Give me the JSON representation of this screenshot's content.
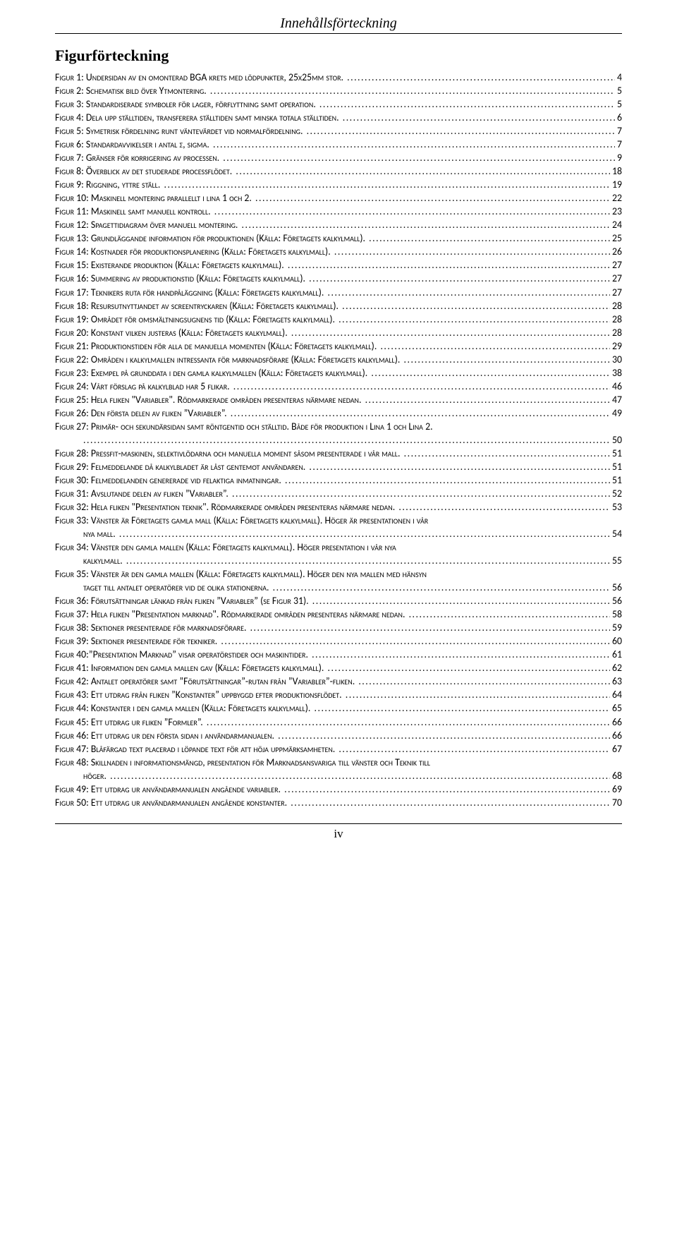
{
  "running_head": "Innehållsförteckning",
  "section_title": "Figurförteckning",
  "page_number": "iv",
  "entries": [
    {
      "label": "Figur 1: Undersidan av en omonterad BGA krets med lödpunkter, 25x25mm stor.",
      "page": "4"
    },
    {
      "label": "Figur 2: Schematisk bild över Ytmontering.",
      "page": "5"
    },
    {
      "label": "Figur 3: Standardiserade symboler för lager, förflyttning samt operation.",
      "page": "5"
    },
    {
      "label": "Figur 4: Dela upp ställtiden, transferera ställtiden samt minska totala ställtiden.",
      "page": "6"
    },
    {
      "label": "Figur 5: Symetrisk fördelning runt väntevärdet vid normalfördelning.",
      "page": "7"
    },
    {
      "label": "Figur 6: Standardavvikelser i antal σ, sigma.",
      "page": "7"
    },
    {
      "label": "Figur 7: Gränser för korrigering av processen.",
      "page": "9"
    },
    {
      "label": "Figur 8: Överblick av det studerade processflödet.",
      "page": "18"
    },
    {
      "label": "Figur 9: Riggning, yttre ställ.",
      "page": "19"
    },
    {
      "label": "Figur 10: Maskinell montering parallellt i lina 1 och 2.",
      "page": "22"
    },
    {
      "label": "Figur 11: Maskinell samt manuell kontroll.",
      "page": "23"
    },
    {
      "label": "Figur 12: Spagettidiagram över manuell montering.",
      "page": "24"
    },
    {
      "label": "Figur 13: Grundläggande information för produktionen (Källa: Företagets kalkylmall).",
      "page": "25"
    },
    {
      "label": "Figur 14: Kostnader för produktionsplanering (Källa: Företagets kalkylmall).",
      "page": "26"
    },
    {
      "label": "Figur 15: Existerande produktion (Källa: Företagets kalkylmall).",
      "page": "27"
    },
    {
      "label": "Figur 16: Summering av produktionstid (Källa: Företagets kalkylmall).",
      "page": "27"
    },
    {
      "label": "Figur 17: Teknikers ruta för handpåläggning (Källa: Företagets kalkylmall).",
      "page": "27"
    },
    {
      "label": "Figur 18: Resursutnyttjandet av screentryckaren (Källa: Företagets kalkylmall).",
      "page": "28"
    },
    {
      "label": "Figur 19: Området för omsmältningsugnens tid (Källa: Företagets kalkylmall).",
      "page": "28"
    },
    {
      "label": "Figur 20: Konstant vilken justeras (Källa: Företagets kalkylmall).",
      "page": "28"
    },
    {
      "label": "Figur 21: Produktionstiden för alla de manuella momenten (Källa: Företagets kalkylmall).",
      "page": "29"
    },
    {
      "label": "Figur 22: Områden i kalkylmallen intressanta för marknadsförare (Källa: Företagets kalkylmall).",
      "page": "30"
    },
    {
      "label": "Figur 23: Exempel på grunddata i den gamla kalkylmallen (Källa: Företagets kalkylmall).",
      "page": "38"
    },
    {
      "label": "Figur 24: Vårt förslag på kalkylblad har 5 flikar.",
      "page": "46"
    },
    {
      "label": "Figur 25: Hela fliken \"Variabler\". Rödmarkerade områden presenteras närmare nedan.",
      "page": "47"
    },
    {
      "label": "Figur 26: Den första delen av fliken ”Variabler”.",
      "page": "49"
    },
    {
      "label": "Figur 27: Primär- och sekundärsidan samt röntgentid och ställtid. Både för produktion i Lina 1 och Lina 2.",
      "page": "50",
      "wrap": true
    },
    {
      "label": "Figur 28: Pressfit-maskinen, selektivlödarna och manuella moment såsom presenterade i vår mall.",
      "page": "51"
    },
    {
      "label": "Figur 29: Felmeddelande då kalkylbladet är låst gentemot användaren.",
      "page": "51"
    },
    {
      "label": "Figur 30: Felmeddelanden genererade vid felaktiga inmatningar.",
      "page": "51"
    },
    {
      "label": "Figur 31: Avslutande delen av fliken ”Variabler”.",
      "page": "52"
    },
    {
      "label": "Figur 32: Hela fliken \"Presentation teknik\". Rödmarkerade områden presenteras närmare nedan.",
      "page": "53"
    },
    {
      "label": "Figur 33: Vänster är Företagets gamla mall (Källa: Företagets kalkylmall). Höger är presentationen i vår nya mall.",
      "page": "54",
      "continuation": "nya mall."
    },
    {
      "label": "Figur 34: Vänster den gamla mallen (Källa: Företagets kalkylmall). Höger presentation i vår nya kalkylmall.",
      "page": "55",
      "continuation": "kalkylmall."
    },
    {
      "label": "Figur 35: Vänster är den gamla mallen (Källa: Företagets kalkylmall). Höger den nya mallen med hänsyn taget till antalet operatörer vid de olika stationerna.",
      "page": "56",
      "continuation": "taget till antalet operatörer vid de olika stationerna."
    },
    {
      "label": "Figur 36: Förutsättningar länkad från fliken ”Variabler” (se Figur 31).",
      "page": "56"
    },
    {
      "label": "Figur 37: Hela fliken \"Presentation marknad\". Rödmarkerade områden presenteras närmare nedan.",
      "page": "58"
    },
    {
      "label": "Figur 38: Sektioner presenterade för marknadsförare.",
      "page": "59"
    },
    {
      "label": "Figur 39: Sektioner presenterade för tekniker.",
      "page": "60"
    },
    {
      "label": "Figur 40:”Presentation Marknad” visar operatörstider och maskintider.",
      "page": "61"
    },
    {
      "label": "Figur 41: Information den gamla mallen gav (Källa: Företagets kalkylmall).",
      "page": "62"
    },
    {
      "label": "Figur 42: Antalet operatörer samt ”Förutsättningar”-rutan från ”Variabler”-fliken.",
      "page": "63"
    },
    {
      "label": "Figur 43: Ett utdrag från fliken ”Konstanter” uppbyggd efter produktionsflödet.",
      "page": "64"
    },
    {
      "label": "Figur 44: Konstanter i den gamla mallen (Källa: Företagets kalkylmall).",
      "page": "65"
    },
    {
      "label": "Figur 45: Ett utdrag ur fliken ”Formler”.",
      "page": "66"
    },
    {
      "label": "Figur 46: Ett utdrag ur den första sidan i användarmanualen.",
      "page": "66"
    },
    {
      "label": "Figur 47: Blåfärgad text placerad i löpande text för att höja uppmärksamheten.",
      "page": "67"
    },
    {
      "label": "Figur 48: Skillnaden i informationsmängd, presentation för Marknadsansvariga till vänster och Teknik till höger.",
      "page": "68",
      "continuation": "höger."
    },
    {
      "label": "Figur 49: Ett utdrag ur användarmanualen angående variabler.",
      "page": "69"
    },
    {
      "label": "Figur 50: Ett utdrag ur användarmanualen angående konstanter.",
      "page": "70"
    }
  ]
}
